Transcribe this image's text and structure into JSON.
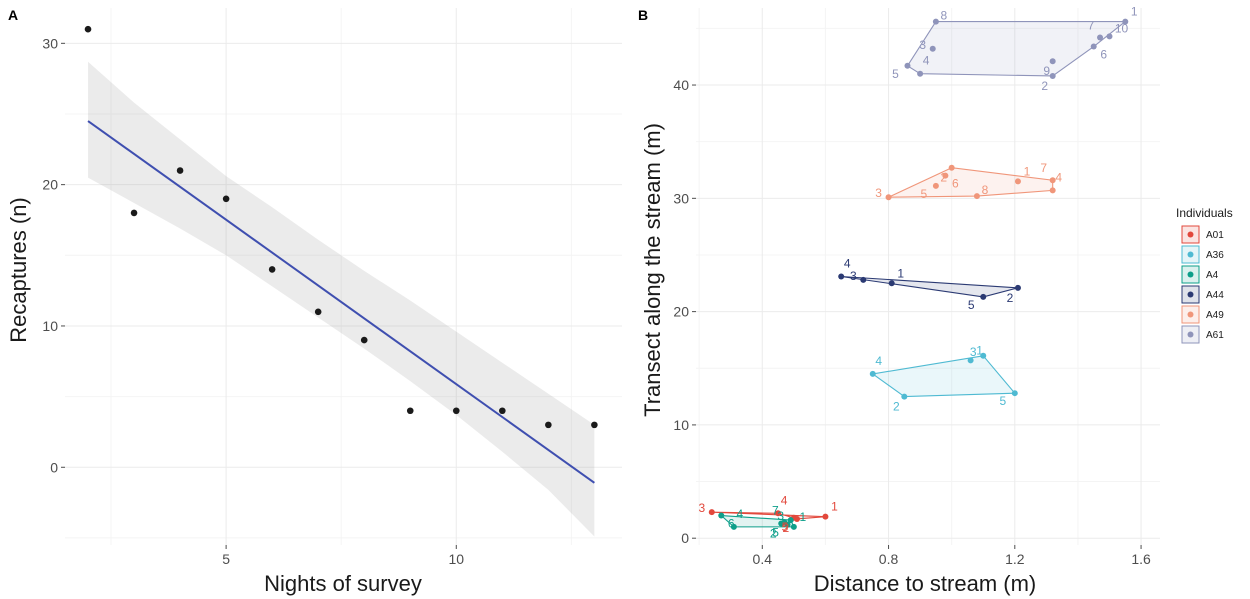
{
  "chart_data": [
    {
      "panel_label": "A",
      "type": "scatter",
      "xlabel": "Nights of survey",
      "ylabel": "Recaptures (n)",
      "xlim": [
        1.5,
        13.6
      ],
      "ylim": [
        -5.5,
        32.5
      ],
      "xticks": [
        5,
        10
      ],
      "yticks": [
        0,
        10,
        20,
        30
      ],
      "grid": true,
      "points": [
        {
          "x": 2,
          "y": 31
        },
        {
          "x": 3,
          "y": 18
        },
        {
          "x": 4,
          "y": 21
        },
        {
          "x": 5,
          "y": 19
        },
        {
          "x": 6,
          "y": 14
        },
        {
          "x": 7,
          "y": 11
        },
        {
          "x": 8,
          "y": 9
        },
        {
          "x": 9,
          "y": 4
        },
        {
          "x": 10,
          "y": 4
        },
        {
          "x": 11,
          "y": 4
        },
        {
          "x": 12,
          "y": 3
        },
        {
          "x": 13,
          "y": 3
        }
      ],
      "fit": {
        "x": [
          2,
          13
        ],
        "y": [
          24.5,
          -1.1
        ],
        "color": "#3f4fb0"
      },
      "confidence_band": {
        "x": [
          2,
          3,
          4,
          5,
          6,
          7,
          8,
          9,
          10,
          11,
          12,
          13
        ],
        "upper": [
          28.7,
          25.8,
          23.2,
          20.6,
          18.4,
          16.1,
          13.9,
          11.8,
          9.6,
          7.4,
          5.2,
          3.0
        ],
        "lower": [
          20.5,
          18.7,
          16.9,
          15.0,
          12.8,
          10.6,
          8.4,
          6.1,
          3.7,
          1.1,
          -1.6,
          -4.9
        ]
      }
    },
    {
      "panel_label": "B",
      "type": "scatter",
      "xlabel": "Distance to stream (m)",
      "ylabel": "Transect along the stream (m)",
      "xlim": [
        0.19,
        1.66
      ],
      "ylim": [
        -0.6,
        46.8
      ],
      "xticks": [
        0.4,
        0.8,
        1.2,
        1.6
      ],
      "xtick_labels": [
        "0.4",
        "0.8",
        "1.2",
        "1.6"
      ],
      "yticks": [
        0,
        10,
        20,
        30,
        40
      ],
      "grid": true,
      "legend": {
        "title": "Individuals",
        "position": "right"
      },
      "series": [
        {
          "name": "A01",
          "color": "#e2483c",
          "points": [
            {
              "label": "1",
              "x": 0.6,
              "y": 1.9
            },
            {
              "label": "2",
              "x": 0.5,
              "y": 1.8
            },
            {
              "label": "3",
              "x": 0.24,
              "y": 2.3
            },
            {
              "label": "4",
              "x": 0.45,
              "y": 2.2
            },
            {
              "label": "5",
              "x": 0.51,
              "y": 1.7
            }
          ],
          "hull": [
            0,
            2,
            3,
            4
          ]
        },
        {
          "name": "A36",
          "color": "#4fbad2",
          "points": [
            {
              "label": "1",
              "x": 1.06,
              "y": 15.7
            },
            {
              "label": "2",
              "x": 0.85,
              "y": 12.5
            },
            {
              "label": "3",
              "x": 1.1,
              "y": 16.1
            },
            {
              "label": "4",
              "x": 0.75,
              "y": 14.5
            },
            {
              "label": "5",
              "x": 1.2,
              "y": 12.8
            }
          ],
          "hull": [
            2,
            3,
            1,
            4
          ]
        },
        {
          "name": "A4",
          "color": "#0e9f8a",
          "points": [
            {
              "label": "1",
              "x": 0.5,
              "y": 1.0
            },
            {
              "label": "2",
              "x": 0.46,
              "y": 1.3
            },
            {
              "label": "3",
              "x": 0.49,
              "y": 1.6
            },
            {
              "label": "4",
              "x": 0.31,
              "y": 1.0
            },
            {
              "label": "5",
              "x": 0.48,
              "y": 1.2
            },
            {
              "label": "6",
              "x": 0.27,
              "y": 2.0
            },
            {
              "label": "7",
              "x": 0.47,
              "y": 1.4
            }
          ],
          "hull": [
            5,
            2,
            0,
            3
          ]
        },
        {
          "name": "A44",
          "color": "#2b3a73",
          "points": [
            {
              "label": "1",
              "x": 0.81,
              "y": 22.5
            },
            {
              "label": "2",
              "x": 1.21,
              "y": 22.1
            },
            {
              "label": "3",
              "x": 0.72,
              "y": 22.8
            },
            {
              "label": "4",
              "x": 0.65,
              "y": 23.1
            },
            {
              "label": "5",
              "x": 1.1,
              "y": 21.3
            }
          ],
          "hull": [
            3,
            1,
            4
          ]
        },
        {
          "name": "A49",
          "color": "#f0967a",
          "points": [
            {
              "label": "1",
              "x": 1.21,
              "y": 31.5
            },
            {
              "label": "2",
              "x": 1.0,
              "y": 32.7
            },
            {
              "label": "3",
              "x": 0.8,
              "y": 30.1
            },
            {
              "label": "4",
              "x": 1.32,
              "y": 30.7
            },
            {
              "label": "5",
              "x": 0.95,
              "y": 31.1
            },
            {
              "label": "6",
              "x": 0.98,
              "y": 32.0
            },
            {
              "label": "7",
              "x": 1.32,
              "y": 31.6
            },
            {
              "label": "8",
              "x": 1.08,
              "y": 30.2
            }
          ],
          "hull": [
            1,
            2,
            7,
            3,
            6
          ]
        },
        {
          "name": "A61",
          "color": "#8f94ba",
          "points": [
            {
              "label": "1",
              "x": 1.55,
              "y": 45.6
            },
            {
              "label": "2",
              "x": 1.32,
              "y": 40.8
            },
            {
              "label": "3",
              "x": 0.94,
              "y": 43.2
            },
            {
              "label": "4",
              "x": 0.9,
              "y": 41.0
            },
            {
              "label": "5",
              "x": 0.86,
              "y": 41.7
            },
            {
              "label": "6",
              "x": 1.45,
              "y": 43.4
            },
            {
              "label": "7",
              "x": 1.47,
              "y": 44.2
            },
            {
              "label": "8",
              "x": 0.95,
              "y": 45.6
            },
            {
              "label": "9",
              "x": 1.32,
              "y": 42.1
            },
            {
              "label": "10",
              "x": 1.5,
              "y": 44.3
            }
          ],
          "hull": [
            7,
            0,
            5,
            1,
            3,
            4
          ]
        }
      ]
    }
  ]
}
